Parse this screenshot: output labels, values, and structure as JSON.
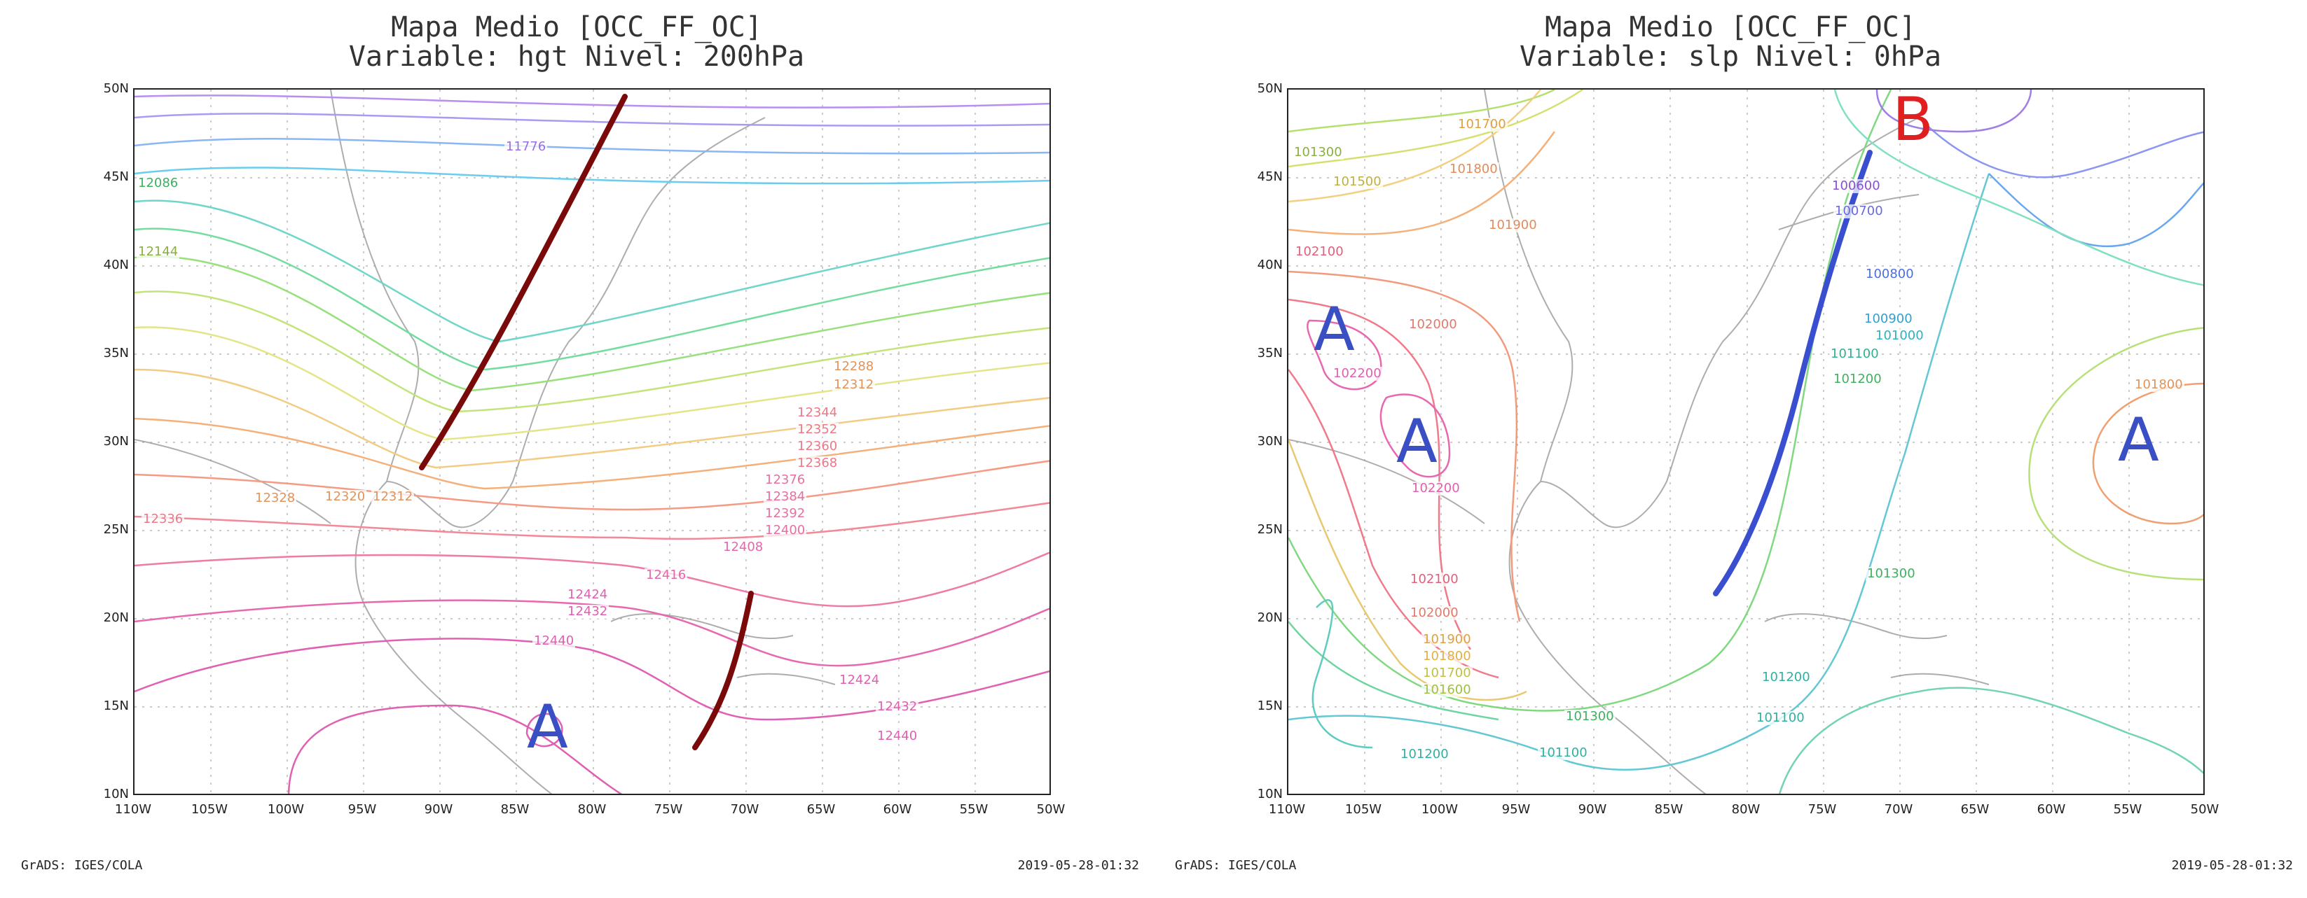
{
  "panels": [
    {
      "title_line1": "Mapa Medio [OCC_FF_OC]",
      "title_line2": "Variable: hgt Nivel: 200hPa",
      "footer_left": "GrADS: IGES/COLA",
      "footer_right": "2019-05-28-01:32",
      "lon_ticks": [
        "110W",
        "105W",
        "100W",
        "95W",
        "90W",
        "85W",
        "80W",
        "75W",
        "70W",
        "65W",
        "60W",
        "55W",
        "50W"
      ],
      "lat_ticks": [
        "50N",
        "45N",
        "40N",
        "35N",
        "30N",
        "25N",
        "20N",
        "15N",
        "10N"
      ],
      "contour_labels": [
        "11776",
        "12086",
        "12144",
        "12288",
        "12312",
        "12328",
        "12320",
        "12312",
        "12336",
        "12344",
        "12352",
        "12360",
        "12368",
        "12376",
        "12384",
        "12392",
        "12400",
        "12408",
        "12416",
        "12424",
        "12432",
        "12440",
        "12424",
        "12432",
        "12440"
      ],
      "symbols": [
        "A"
      ],
      "symbol_colors": [
        "#3a4fc4"
      ],
      "trough_color": "#7a0a0a"
    },
    {
      "title_line1": "Mapa Medio [OCC_FF_OC]",
      "title_line2": "Variable: slp Nivel: 0hPa",
      "footer_left": "GrADS: IGES/COLA",
      "footer_right": "2019-05-28-01:32",
      "lon_ticks": [
        "110W",
        "105W",
        "100W",
        "95W",
        "90W",
        "85W",
        "80W",
        "75W",
        "70W",
        "65W",
        "60W",
        "55W",
        "50W"
      ],
      "lat_ticks": [
        "50N",
        "45N",
        "40N",
        "35N",
        "30N",
        "25N",
        "20N",
        "15N",
        "10N"
      ],
      "contour_labels": [
        "101300",
        "101500",
        "101700",
        "101800",
        "101900",
        "102100",
        "102000",
        "102200",
        "102200",
        "102100",
        "102000",
        "101900",
        "101800",
        "101700",
        "101600",
        "101300",
        "101200",
        "101100",
        "100600",
        "100700",
        "100800",
        "100900",
        "101000",
        "101100",
        "101200",
        "101800",
        "101300",
        "101200",
        "101100"
      ],
      "symbols": [
        "A",
        "A",
        "A",
        "B"
      ],
      "symbol_colors": [
        "#3a4fc4",
        "#3a4fc4",
        "#3a4fc4",
        "#e02020"
      ],
      "front_color": "#3a4fd0"
    }
  ]
}
